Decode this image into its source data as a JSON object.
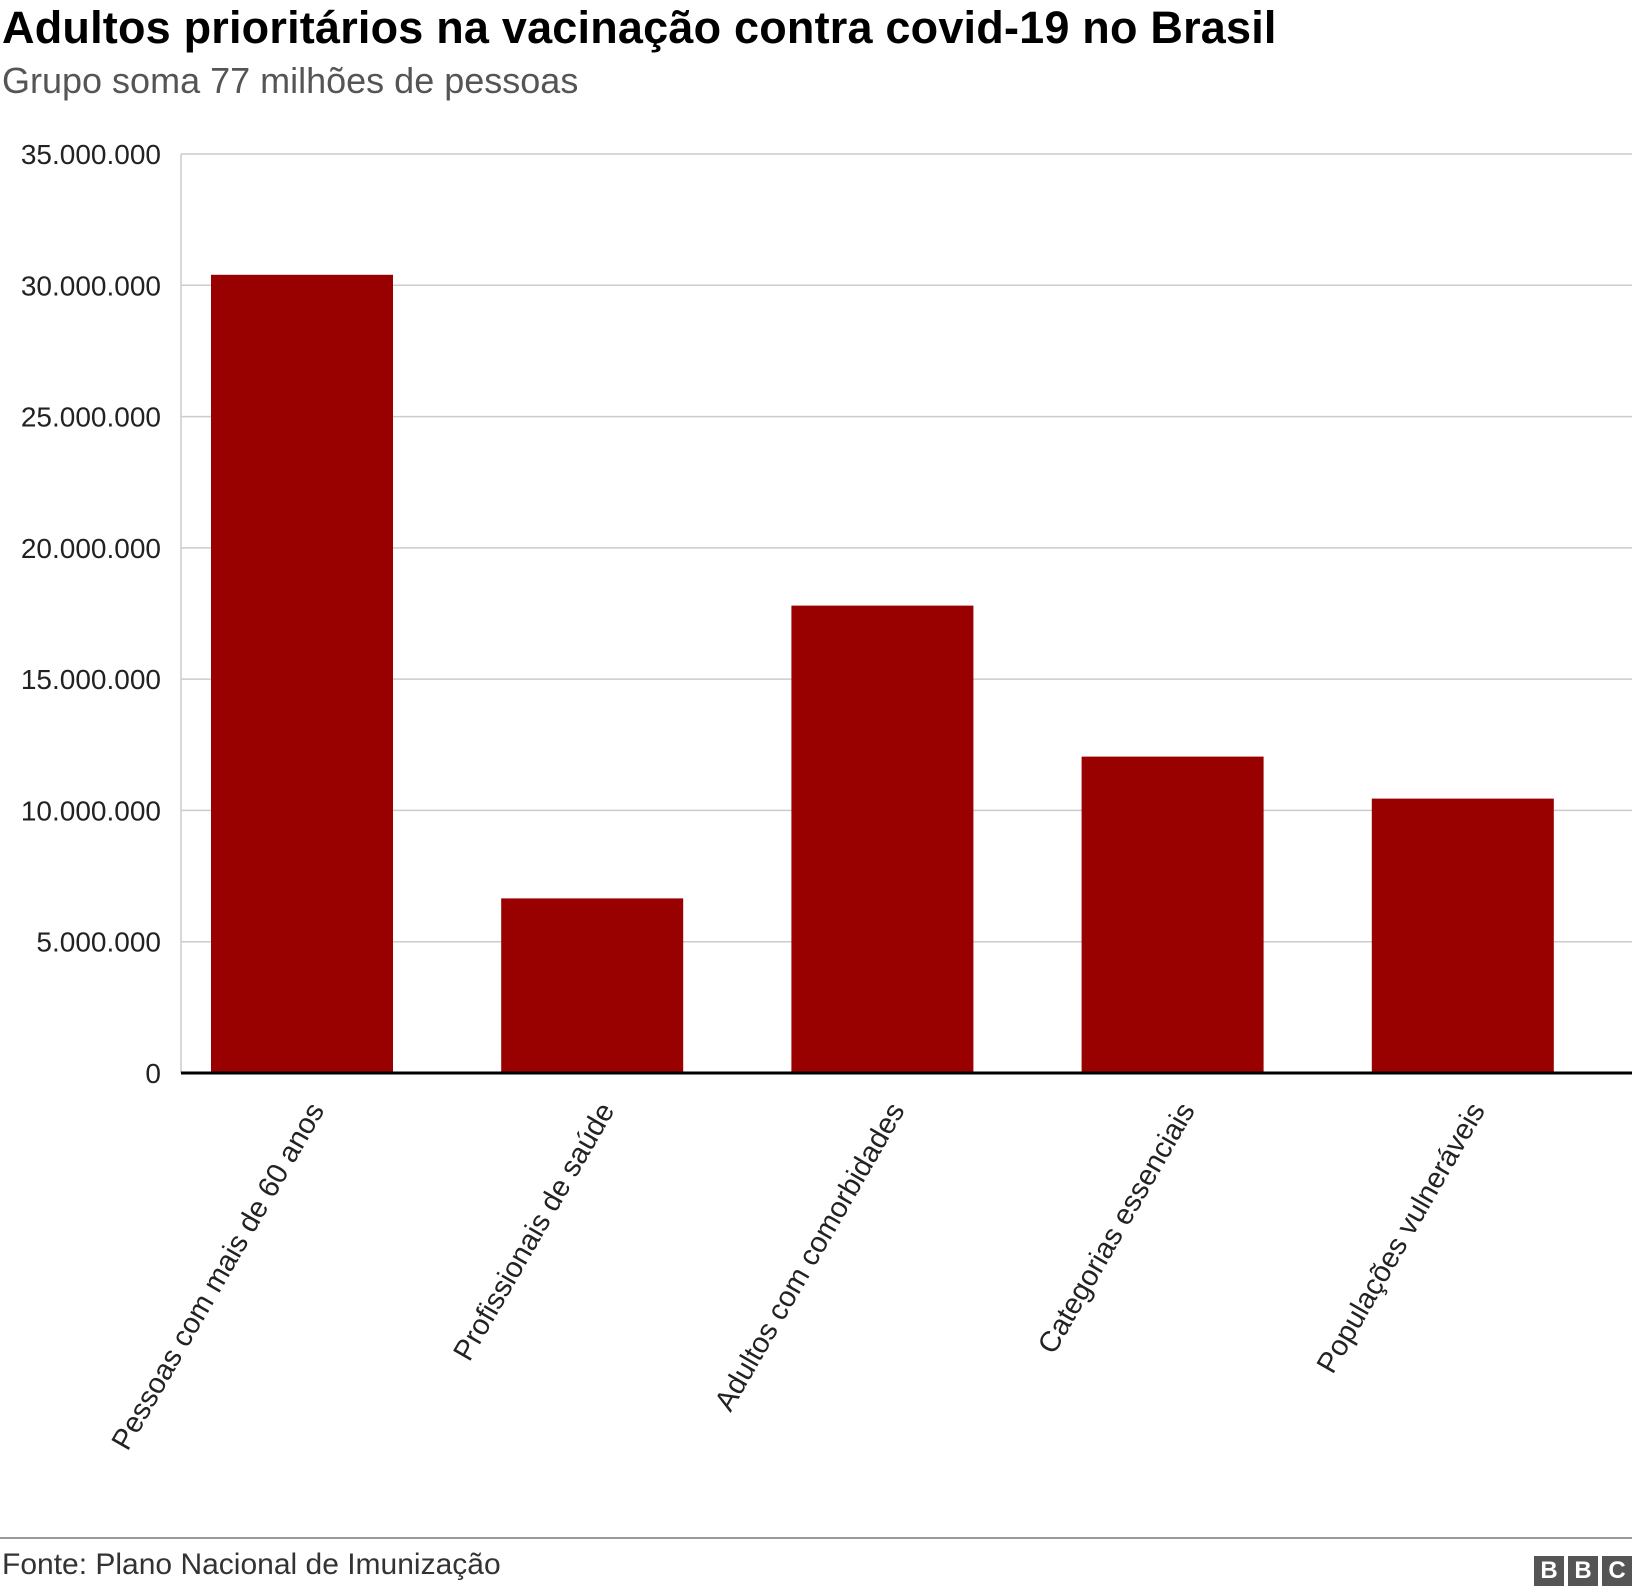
{
  "header": {
    "title": "Adultos prioritários na vacinação contra covid-19 no Brasil",
    "subtitle": "Grupo soma 77 milhões de pessoas"
  },
  "footer": {
    "source": "Fonte: Plano Nacional de Imunização",
    "logo_letters": [
      "B",
      "B",
      "C"
    ]
  },
  "chart_data": {
    "type": "bar",
    "title": "Adultos prioritários na vacinação contra covid-19 no Brasil",
    "subtitle": "Grupo soma 77 milhões de pessoas",
    "categories": [
      "Pessoas com mais de 60 anos",
      "Profissionais de saúde",
      "Adultos com comorbidades",
      "Categorias essenciais",
      "Populações vulneráveis"
    ],
    "values": [
      30400000,
      6650000,
      17800000,
      12050000,
      10450000
    ],
    "ylim": [
      0,
      35000000
    ],
    "yticks": [
      0,
      5000000,
      10000000,
      15000000,
      20000000,
      25000000,
      30000000,
      35000000
    ],
    "ytick_labels": [
      "0",
      "5.000.000",
      "10.000.000",
      "15.000.000",
      "20.000.000",
      "25.000.000",
      "30.000.000",
      "35.000.000"
    ],
    "xlabel": "",
    "ylabel": "",
    "grid": true,
    "bar_color": "#990000"
  }
}
